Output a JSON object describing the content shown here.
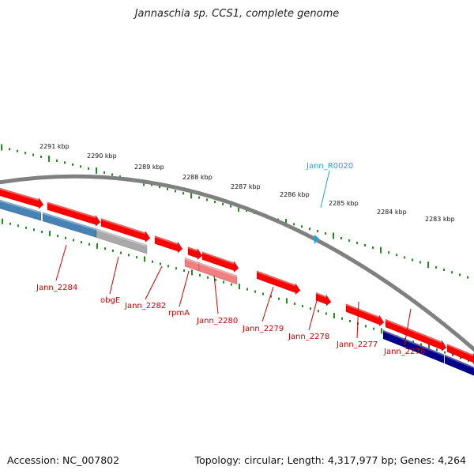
{
  "title": "Jannaschia sp. CCS1, complete genome",
  "footer": {
    "accession": "Accession: NC_007802",
    "summary": "Topology: circular; Length: 4,317,977 bp; Genes: 4,264"
  },
  "colors": {
    "forward_gene": "#ff0000",
    "forward_pseudo": "#f08080",
    "reverse_gene": "#4682b4",
    "reverse_dark": "#00008b",
    "reverse_pseudo": "#a9a9a9",
    "rna_gene": "#1fa3d6",
    "ruler": "#228b22",
    "backbone": "#808080",
    "label_gene": "#cc0000",
    "label_rna": "#1fa3d6"
  },
  "scale_labels": [
    "2291 kbp",
    "2290 kbp",
    "2289 kbp",
    "2288 kbp",
    "2287 kbp",
    "2286 kbp",
    "2285 kbp",
    "2284 kbp",
    "2283 kbp"
  ],
  "gene_labels": [
    {
      "text": "Jann_R0020",
      "type": "rna"
    },
    {
      "text": "Jann_2284",
      "type": "gene"
    },
    {
      "text": "obgE",
      "type": "gene"
    },
    {
      "text": "Jann_2282",
      "type": "gene"
    },
    {
      "text": "rpmA",
      "type": "gene"
    },
    {
      "text": "Jann_2280",
      "type": "gene"
    },
    {
      "text": "Jann_2279",
      "type": "gene"
    },
    {
      "text": "Jann_2278",
      "type": "gene"
    },
    {
      "text": "Jann_2277",
      "type": "gene"
    },
    {
      "text": "Jann_2276",
      "type": "gene"
    }
  ]
}
